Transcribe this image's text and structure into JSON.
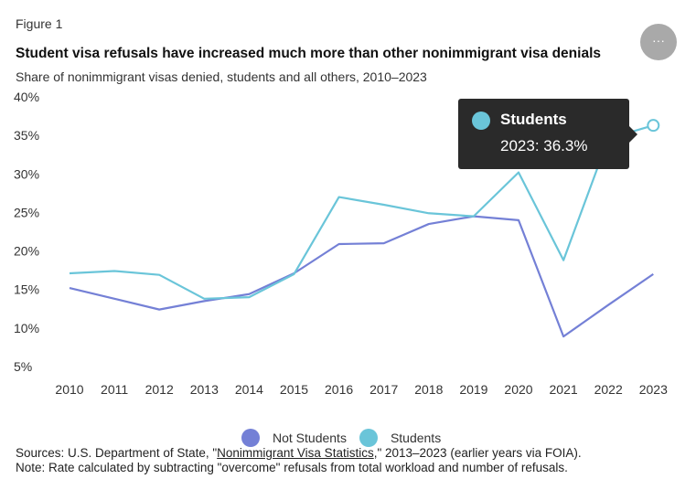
{
  "figure_label": "Figure 1",
  "menu_glyph": "···",
  "tooltip": {
    "series": "Students",
    "value": "2023: 36.3%",
    "color": "#6ac5d9"
  },
  "notes": {
    "sources_prefix": "Sources: U.S. Department of State, \"",
    "sources_link": "Nonimmigrant Visa Statistics",
    "sources_suffix": ",\" 2013–2023 (earlier years via FOIA).",
    "note": "Note: Rate calculated by subtracting \"overcome\" refusals from total workload and number of refusals."
  },
  "chart_data": {
    "type": "line",
    "title": "Student visa refusals have increased much more than other nonimmigrant visa denials",
    "subtitle": "Share of nonimmigrant visas denied, students and all others, 2010–2023",
    "x": [
      "2010",
      "2011",
      "2012",
      "2013",
      "2014",
      "2015",
      "2016",
      "2017",
      "2018",
      "2019",
      "2020",
      "2021",
      "2022",
      "2023"
    ],
    "yticks": [
      "5%",
      "10%",
      "15%",
      "20%",
      "25%",
      "30%",
      "35%",
      "40%"
    ],
    "ylim": [
      5,
      40
    ],
    "grid": false,
    "legend_position": "bottom",
    "series": [
      {
        "name": "Not Students",
        "color": "#7480d6",
        "values": [
          15.2,
          13.8,
          12.4,
          13.5,
          14.4,
          17.1,
          20.9,
          21.0,
          23.5,
          24.5,
          24.0,
          8.9,
          13.0,
          17.0
        ]
      },
      {
        "name": "Students",
        "color": "#6ac5d9",
        "values": [
          17.1,
          17.4,
          16.9,
          13.8,
          14.0,
          17.0,
          27.0,
          26.0,
          24.9,
          24.5,
          30.2,
          18.8,
          34.6,
          36.3
        ]
      }
    ]
  }
}
